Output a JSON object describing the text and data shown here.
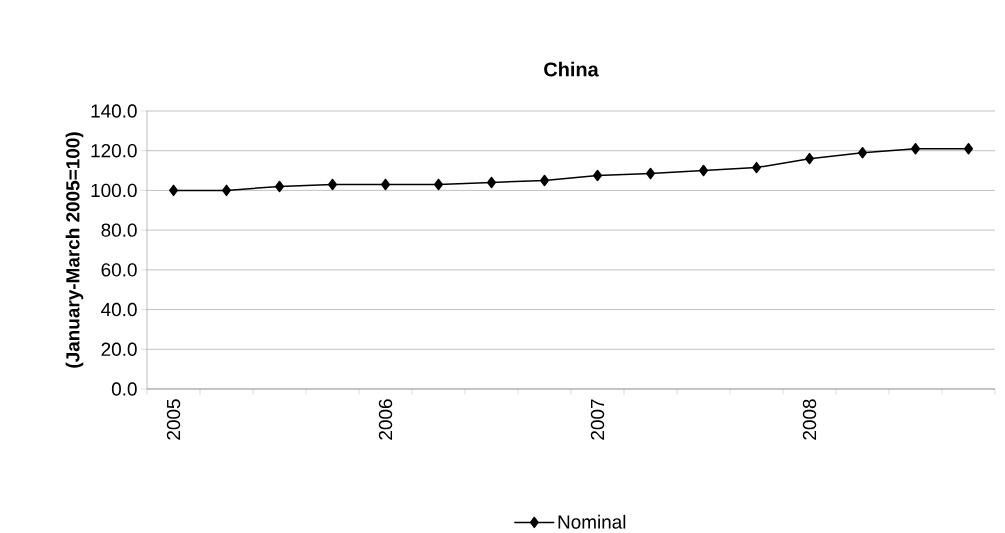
{
  "chart_data": {
    "type": "line",
    "title": "China",
    "ylabel": "(January-March 2005=100)",
    "categories": [
      "2005",
      null,
      null,
      null,
      "2006",
      null,
      null,
      null,
      "2007",
      null,
      null,
      null,
      "2008",
      null,
      null,
      null
    ],
    "series": [
      {
        "name": "Nominal",
        "color": "#000000",
        "values": [
          100,
          100,
          102,
          103,
          103,
          103,
          104,
          105,
          107.5,
          108.5,
          110,
          111.5,
          116,
          119,
          121,
          121
        ]
      }
    ],
    "ylim": [
      0,
      140
    ],
    "yticks": [
      {
        "value": 0,
        "label": "0.0"
      },
      {
        "value": 20,
        "label": "20.0"
      },
      {
        "value": 40,
        "label": "40.0"
      },
      {
        "value": 60,
        "label": "60.0"
      },
      {
        "value": 80,
        "label": "80.0"
      },
      {
        "value": 100,
        "label": "100.0"
      },
      {
        "value": 120,
        "label": "120.0"
      },
      {
        "value": 140,
        "label": "140.0"
      }
    ],
    "grid": "y",
    "legend": "bottom",
    "marker": "diamond",
    "line_style": "solid"
  }
}
